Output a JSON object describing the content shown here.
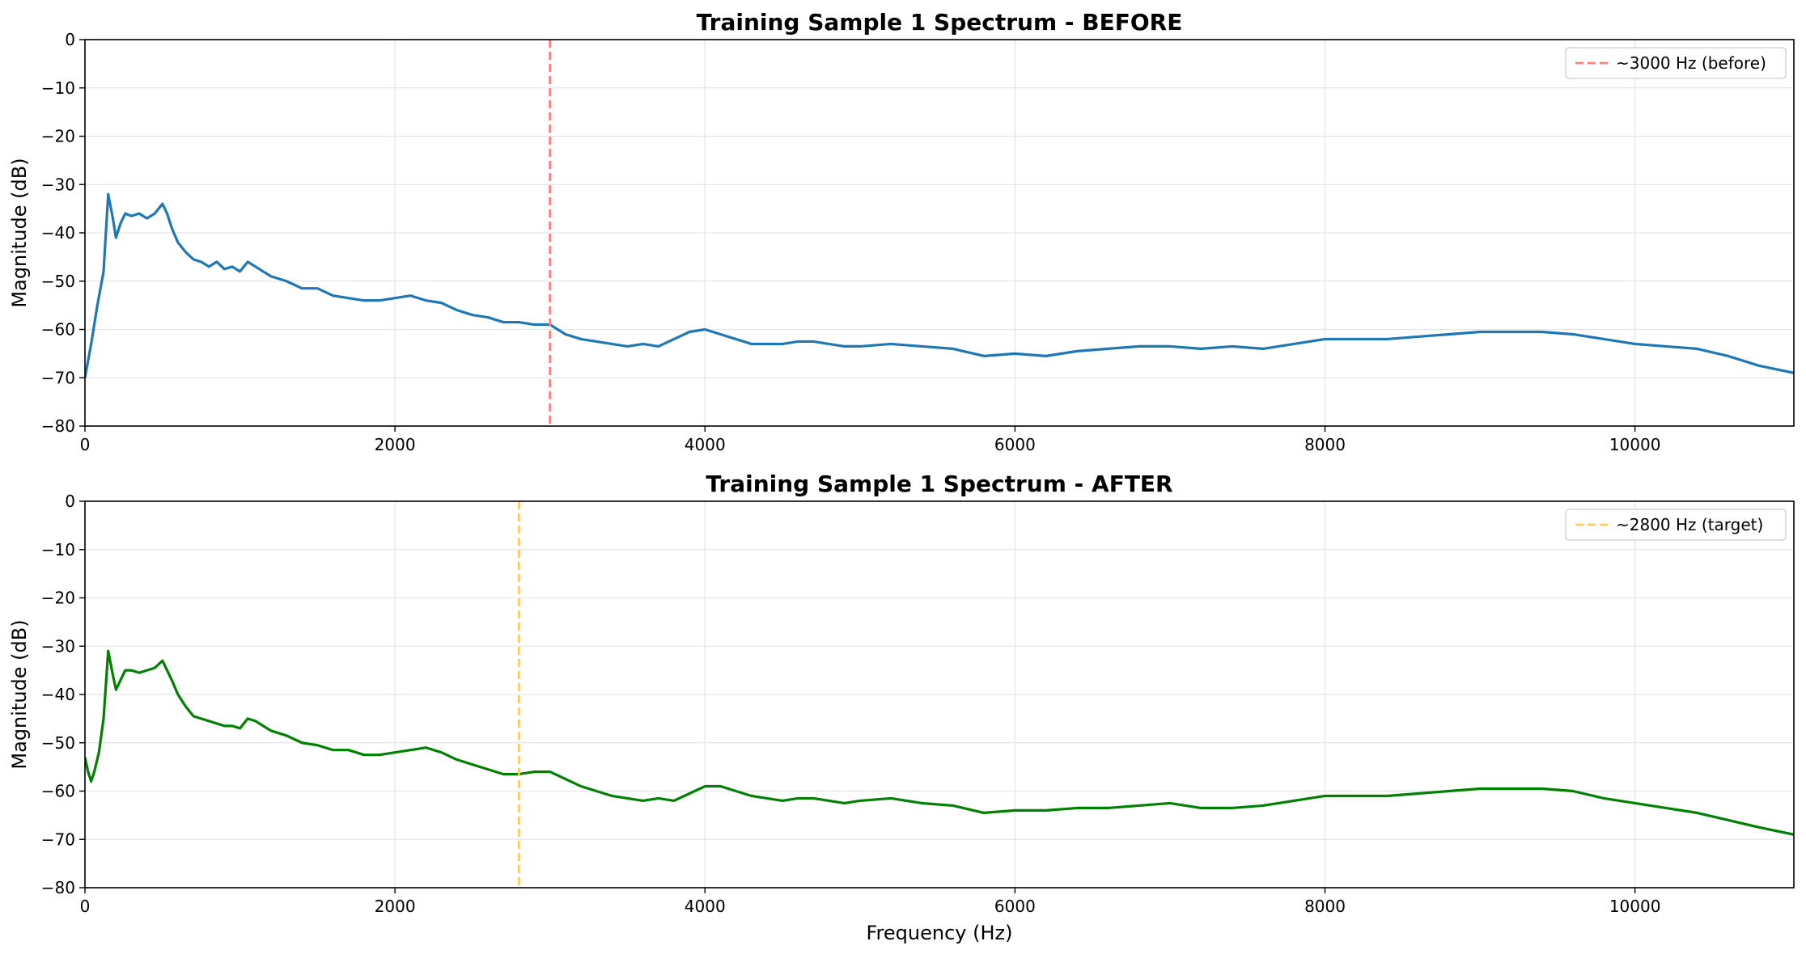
{
  "chart_data": [
    {
      "type": "line",
      "title": "Training Sample 1 Spectrum - BEFORE",
      "xlabel": "",
      "ylabel": "Magnitude (dB)",
      "xlim": [
        0,
        11025
      ],
      "ylim": [
        -80,
        0
      ],
      "xticks": [
        0,
        2000,
        4000,
        6000,
        8000,
        10000
      ],
      "xtick_labels": [
        "0",
        "2000",
        "4000",
        "6000",
        "8000",
        "10000"
      ],
      "yticks": [
        0,
        -10,
        -20,
        -30,
        -40,
        -50,
        -60,
        -70,
        -80
      ],
      "ytick_labels": [
        "0",
        "−10",
        "−20",
        "−30",
        "−40",
        "−50",
        "−60",
        "−70",
        "−80"
      ],
      "grid": true,
      "legend_position": "top-right",
      "series": [
        {
          "color": "#1f77b4",
          "x": [
            0,
            40,
            80,
            120,
            150,
            180,
            200,
            230,
            260,
            300,
            350,
            400,
            450,
            500,
            530,
            560,
            600,
            650,
            700,
            750,
            800,
            850,
            900,
            950,
            1000,
            1050,
            1100,
            1150,
            1200,
            1300,
            1400,
            1500,
            1600,
            1700,
            1800,
            1900,
            2000,
            2100,
            2200,
            2300,
            2400,
            2500,
            2600,
            2700,
            2800,
            2900,
            3000,
            3100,
            3200,
            3300,
            3400,
            3500,
            3600,
            3700,
            3800,
            3900,
            4000,
            4100,
            4200,
            4300,
            4400,
            4500,
            4600,
            4700,
            4800,
            4900,
            5000,
            5200,
            5400,
            5600,
            5800,
            6000,
            6200,
            6400,
            6600,
            6800,
            7000,
            7200,
            7400,
            7600,
            7800,
            8000,
            8200,
            8400,
            8600,
            8800,
            9000,
            9200,
            9400,
            9600,
            9800,
            10000,
            10200,
            10400,
            10600,
            10800,
            11025
          ],
          "y": [
            -70,
            -63,
            -55,
            -48,
            -32,
            -37,
            -41,
            -38,
            -36,
            -36.5,
            -36,
            -37,
            -36,
            -34,
            -36,
            -39,
            -42,
            -44,
            -45.5,
            -46,
            -47,
            -46,
            -47.5,
            -47,
            -48,
            -46,
            -47,
            -48,
            -49,
            -50,
            -51.5,
            -51.5,
            -53,
            -53.5,
            -54,
            -54,
            -53.5,
            -53,
            -54,
            -54.5,
            -56,
            -57,
            -57.5,
            -58.5,
            -58.5,
            -59,
            -59,
            -61,
            -62,
            -62.5,
            -63,
            -63.5,
            -63,
            -63.5,
            -62,
            -60.5,
            -60,
            -61,
            -62,
            -63,
            -63,
            -63,
            -62.5,
            -62.5,
            -63,
            -63.5,
            -63.5,
            -63,
            -63.5,
            -64,
            -65.5,
            -65,
            -65.5,
            -64.5,
            -64,
            -63.5,
            -63.5,
            -64,
            -63.5,
            -64,
            -63,
            -62,
            -62,
            -62,
            -61.5,
            -61,
            -60.5,
            -60.5,
            -60.5,
            -61,
            -62,
            -63,
            -63.5,
            -64,
            -65.5,
            -67.5,
            -69
          ]
        }
      ],
      "annotation": {
        "x": 3000,
        "color": "#ff7f7f",
        "label": "~3000 Hz (before)"
      }
    },
    {
      "type": "line",
      "title": "Training Sample 1 Spectrum - AFTER",
      "xlabel": "Frequency (Hz)",
      "ylabel": "Magnitude (dB)",
      "xlim": [
        0,
        11025
      ],
      "ylim": [
        -80,
        0
      ],
      "xticks": [
        0,
        2000,
        4000,
        6000,
        8000,
        10000
      ],
      "xtick_labels": [
        "0",
        "2000",
        "4000",
        "6000",
        "8000",
        "10000"
      ],
      "yticks": [
        0,
        -10,
        -20,
        -30,
        -40,
        -50,
        -60,
        -70,
        -80
      ],
      "ytick_labels": [
        "0",
        "−10",
        "−20",
        "−30",
        "−40",
        "−50",
        "−60",
        "−70",
        "−80"
      ],
      "grid": true,
      "legend_position": "top-right",
      "series": [
        {
          "color": "#008000",
          "x": [
            0,
            20,
            40,
            60,
            90,
            120,
            150,
            180,
            200,
            230,
            260,
            300,
            350,
            400,
            450,
            500,
            530,
            560,
            600,
            650,
            700,
            750,
            800,
            850,
            900,
            950,
            1000,
            1050,
            1100,
            1150,
            1200,
            1300,
            1400,
            1500,
            1600,
            1700,
            1800,
            1900,
            2000,
            2100,
            2200,
            2300,
            2400,
            2500,
            2600,
            2700,
            2800,
            2900,
            3000,
            3100,
            3200,
            3300,
            3400,
            3500,
            3600,
            3700,
            3800,
            3900,
            4000,
            4100,
            4200,
            4300,
            4400,
            4500,
            4600,
            4700,
            4800,
            4900,
            5000,
            5200,
            5400,
            5600,
            5800,
            6000,
            6200,
            6400,
            6600,
            6800,
            7000,
            7200,
            7400,
            7600,
            7800,
            8000,
            8200,
            8400,
            8600,
            8800,
            9000,
            9200,
            9400,
            9600,
            9800,
            10000,
            10200,
            10400,
            10600,
            10800,
            11025
          ],
          "y": [
            -53,
            -56,
            -58,
            -56,
            -52,
            -45,
            -31,
            -36,
            -39,
            -37,
            -35,
            -35,
            -35.5,
            -35,
            -34.5,
            -33,
            -35,
            -37,
            -40,
            -42.5,
            -44.5,
            -45,
            -45.5,
            -46,
            -46.5,
            -46.5,
            -47,
            -45,
            -45.5,
            -46.5,
            -47.5,
            -48.5,
            -50,
            -50.5,
            -51.5,
            -51.5,
            -52.5,
            -52.5,
            -52,
            -51.5,
            -51,
            -52,
            -53.5,
            -54.5,
            -55.5,
            -56.5,
            -56.5,
            -56,
            -56,
            -57.5,
            -59,
            -60,
            -61,
            -61.5,
            -62,
            -61.5,
            -62,
            -60.5,
            -59,
            -59,
            -60,
            -61,
            -61.5,
            -62,
            -61.5,
            -61.5,
            -62,
            -62.5,
            -62,
            -61.5,
            -62.5,
            -63,
            -64.5,
            -64,
            -64,
            -63.5,
            -63.5,
            -63,
            -62.5,
            -63.5,
            -63.5,
            -63,
            -62,
            -61,
            -61,
            -61,
            -60.5,
            -60,
            -59.5,
            -59.5,
            -59.5,
            -60,
            -61.5,
            -62.5,
            -63.5,
            -64.5,
            -66,
            -67.5,
            -69
          ]
        }
      ],
      "annotation": {
        "x": 2800,
        "color": "#ffc966",
        "label": "~2800 Hz (target)"
      }
    }
  ]
}
